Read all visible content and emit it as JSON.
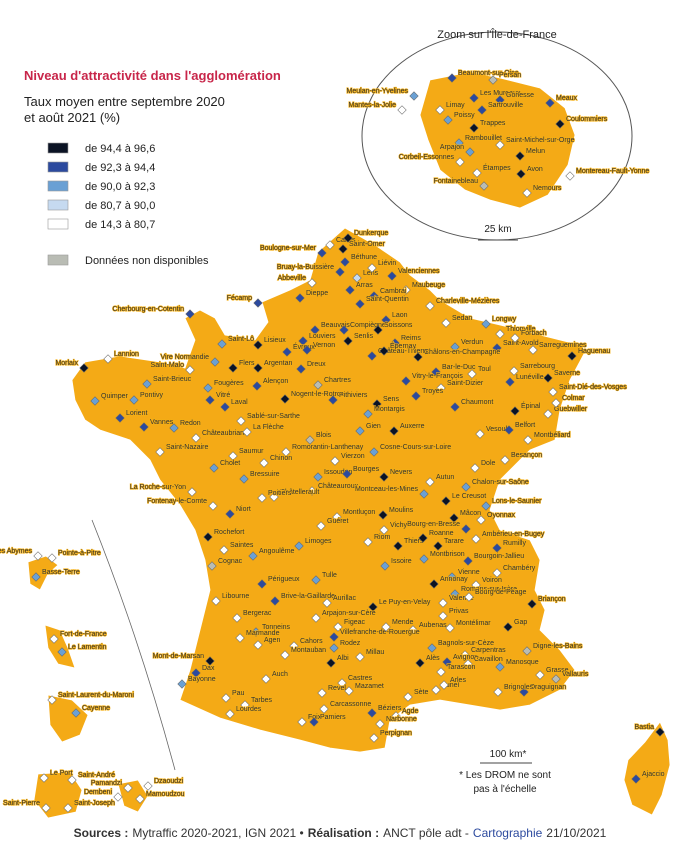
{
  "legend": {
    "title": "Niveau d'attractivité dans l'agglomération",
    "subtitle": [
      "Taux moyen entre septembre 2020",
      "et août 2021 (%)"
    ],
    "classes": [
      {
        "label": "de 94,4 à 96,6",
        "color": "#0b1324"
      },
      {
        "label": "de 92,3 à 94,4",
        "color": "#2c4a9e"
      },
      {
        "label": "de 90,0 à 92,3",
        "color": "#6aa0d4"
      },
      {
        "label": "de 80,7 à 90,0",
        "color": "#c6daf0"
      },
      {
        "label": "de 14,3 à 80,7",
        "color": "#ffffff"
      },
      {
        "label": "Données non disponibles",
        "color": "#b9bcb4"
      }
    ]
  },
  "inset": {
    "title": "Zoom sur l'Île-de-France",
    "scale": "25 km",
    "cities": [
      [
        "Beaumont-sur-Oise",
        1
      ],
      [
        "Persan",
        5
      ],
      [
        "Meulan-en-Yvelines",
        2
      ],
      [
        "Mantes-la-Jolie",
        4
      ],
      [
        "Les Mureaux",
        1
      ],
      [
        "Gonesse",
        1
      ],
      [
        "Meaux",
        1
      ],
      [
        "Limay",
        4
      ],
      [
        "Sartrouville",
        1
      ],
      [
        "Poissy",
        2
      ],
      [
        "Coulommiers",
        0
      ],
      [
        "Trappes",
        0
      ],
      [
        "Rambouillet",
        2
      ],
      [
        "Saint-Michel-sur-Orge",
        4
      ],
      [
        "Arpajon",
        2
      ],
      [
        "Corbeil-Essonnes",
        4
      ],
      [
        "Melun",
        0
      ],
      [
        "Étampes",
        4
      ],
      [
        "Avon",
        0
      ],
      [
        "Montereau-Fault-Yonne",
        4
      ],
      [
        "Fontainebleau",
        5
      ],
      [
        "Nemours",
        4
      ]
    ]
  },
  "cities": [
    [
      "Calais",
      4
    ],
    [
      "Dunkerque",
      0
    ],
    [
      "Boulogne-sur-Mer",
      1
    ],
    [
      "Saint-Omer",
      0
    ],
    [
      "Béthune",
      1
    ],
    [
      "Bruay-la-Buissière",
      1
    ],
    [
      "Lens",
      3
    ],
    [
      "Liévin",
      4
    ],
    [
      "Valenciennes",
      1
    ],
    [
      "Arras",
      1
    ],
    [
      "Abbeville",
      4
    ],
    [
      "Dieppe",
      1
    ],
    [
      "Maubeuge",
      4
    ],
    [
      "Cambrai",
      1
    ],
    [
      "Saint-Quentin",
      1
    ],
    [
      "Fécamp",
      1
    ],
    [
      "Cherbourg-en-Cotentin",
      1
    ],
    [
      "Charleville-Mézières",
      4
    ],
    [
      "Sedan",
      4
    ],
    [
      "Laon",
      1
    ],
    [
      "Beauvais",
      1
    ],
    [
      "Compiègne",
      1
    ],
    [
      "Soissons",
      0
    ],
    [
      "Longwy",
      2
    ],
    [
      "Thionville",
      4
    ],
    [
      "Saint-Lô",
      2
    ],
    [
      "Lisieux",
      0
    ],
    [
      "Louviers",
      1
    ],
    [
      "Senlis",
      0
    ],
    [
      "Reims",
      1
    ],
    [
      "Verdun",
      2
    ],
    [
      "Saint-Avold",
      1
    ],
    [
      "Forbach",
      4
    ],
    [
      "Sarreguemines",
      4
    ],
    [
      "Haguenau",
      0
    ],
    [
      "Évreux",
      1
    ],
    [
      "Vernon",
      1
    ],
    [
      "Château-Thierry",
      1
    ],
    [
      "Épernay",
      0
    ],
    [
      "Châlons-en-Champagne",
      0
    ],
    [
      "Lannion",
      4
    ],
    [
      "Morlaix",
      0
    ],
    [
      "Vire Normandie",
      2
    ],
    [
      "Flers",
      0
    ],
    [
      "Argentan",
      0
    ],
    [
      "Dreux",
      1
    ],
    [
      "Saint-Malo",
      4
    ],
    [
      "Bar-le-Duc",
      1
    ],
    [
      "Toul",
      4
    ],
    [
      "Sarrebourg",
      4
    ],
    [
      "Saverne",
      0
    ],
    [
      "Saint-Brieuc",
      2
    ],
    [
      "Fougères",
      2
    ],
    [
      "Alençon",
      1
    ],
    [
      "Chartres",
      5
    ],
    [
      "Vitry-le-François",
      1
    ],
    [
      "Lunéville",
      1
    ],
    [
      "Quimper",
      2
    ],
    [
      "Pontivy",
      2
    ],
    [
      "Vitré",
      1
    ],
    [
      "Laval",
      1
    ],
    [
      "Nogent-le-Rotrou",
      0
    ],
    [
      "Pithiviers",
      1
    ],
    [
      "Sens",
      0
    ],
    [
      "Saint-Dizier",
      4
    ],
    [
      "Saint-Dié-des-Vosges",
      4
    ],
    [
      "Troyes",
      1
    ],
    [
      "Chaumont",
      1
    ],
    [
      "Épinal",
      0
    ],
    [
      "Guebwiller",
      4
    ],
    [
      "Colmar",
      4
    ],
    [
      "Lorient",
      1
    ],
    [
      "Vannes",
      1
    ],
    [
      "Redon",
      2
    ],
    [
      "Sablé-sur-Sarthe",
      4
    ],
    [
      "Montargis",
      2
    ],
    [
      "Auxerre",
      0
    ],
    [
      "Gien",
      2
    ],
    [
      "Vesoul",
      4
    ],
    [
      "Belfort",
      1
    ],
    [
      "Montbéliard",
      4
    ],
    [
      "Châteaubriant",
      4
    ],
    [
      "La Flèche",
      4
    ],
    [
      "Blois",
      5
    ],
    [
      "Saint-Nazaire",
      4
    ],
    [
      "Saumur",
      4
    ],
    [
      "Romorantin-Lanthenay",
      4
    ],
    [
      "Cosne-Cours-sur-Loire",
      2
    ],
    [
      "Chinon",
      4
    ],
    [
      "Cholet",
      2
    ],
    [
      "Vierzon",
      4
    ],
    [
      "Besançon",
      4
    ],
    [
      "Dole",
      4
    ],
    [
      "Bressuire",
      2
    ],
    [
      "Issoudun",
      2
    ],
    [
      "Bourges",
      1
    ],
    [
      "Nevers",
      0
    ],
    [
      "Autun",
      4
    ],
    [
      "Châteauroux",
      4
    ],
    [
      "Châtellerault",
      4
    ],
    [
      "La Roche-sur-Yon",
      4
    ],
    [
      "Fontenay-le-Comte",
      4
    ],
    [
      "Poitiers",
      4
    ],
    [
      "Montceau-les-Mines",
      2
    ],
    [
      "Le Creusot",
      0
    ],
    [
      "Chalon-sur-Saône",
      2
    ],
    [
      "Lons-le-Saunier",
      2
    ],
    [
      "Niort",
      1
    ],
    [
      "Montluçon",
      4
    ],
    [
      "Moulins",
      0
    ],
    [
      "Oyonnax",
      4
    ],
    [
      "Guéret",
      4
    ],
    [
      "Mâcon",
      0
    ],
    [
      "Bourg-en-Bresse",
      1
    ],
    [
      "Vichy",
      4
    ],
    [
      "Riom",
      4
    ],
    [
      "Thiers",
      0
    ],
    [
      "Roanne",
      0
    ],
    [
      "Tarare",
      0
    ],
    [
      "Rochefort",
      0
    ],
    [
      "Ambérieu-en-Bugey",
      4
    ],
    [
      "Saintes",
      4
    ],
    [
      "Angoulême",
      2
    ],
    [
      "Limoges",
      2
    ],
    [
      "Rumilly",
      1
    ],
    [
      "Montbrison",
      2
    ],
    [
      "Bourgoin-Jallieu",
      1
    ],
    [
      "Issoire",
      2
    ],
    [
      "Cognac",
      5
    ],
    [
      "Vienne",
      2
    ],
    [
      "Chambéry",
      4
    ],
    [
      "Annonay",
      0
    ],
    [
      "Tulle",
      2
    ],
    [
      "Périgueux",
      1
    ],
    [
      "Voiron",
      4
    ],
    [
      "Romans-sur-Isère",
      2
    ],
    [
      "Brive-la-Gaillarde",
      1
    ],
    [
      "Aurillac",
      4
    ],
    [
      "Le Puy-en-Velay",
      0
    ],
    [
      "Valence",
      4
    ],
    [
      "Bourg-de-Péage",
      4
    ],
    [
      "Libourne",
      4
    ],
    [
      "Briançon",
      0
    ],
    [
      "Bergerac",
      4
    ],
    [
      "Arpajon-sur-Cère",
      4
    ],
    [
      "Privas",
      4
    ],
    [
      "Gap",
      0
    ],
    [
      "Aubenas",
      4
    ],
    [
      "Montélimar",
      4
    ],
    [
      "Tonneins",
      2
    ],
    [
      "Figeac",
      4
    ],
    [
      "Villefranche-de-Rouergue",
      1
    ],
    [
      "Mende",
      4
    ],
    [
      "Marmande",
      4
    ],
    [
      "Agen",
      4
    ],
    [
      "Cahors",
      4
    ],
    [
      "Bagnols-sur-Cèze",
      2
    ],
    [
      "Carpentras",
      4
    ],
    [
      "Digne-les-Bains",
      5
    ],
    [
      "Montauban",
      4
    ],
    [
      "Rodez",
      2
    ],
    [
      "Millau",
      4
    ],
    [
      "Avignon",
      1
    ],
    [
      "Cavaillon",
      4
    ],
    [
      "Manosque",
      2
    ],
    [
      "Mont-de-Marsan",
      0
    ],
    [
      "Dax",
      1
    ],
    [
      "Albi",
      0
    ],
    [
      "Alès",
      0
    ],
    [
      "Tarascon",
      4
    ],
    [
      "Grasse",
      4
    ],
    [
      "Vallauris",
      5
    ],
    [
      "Bayonne",
      2
    ],
    [
      "Auch",
      4
    ],
    [
      "Castres",
      4
    ],
    [
      "Lunel",
      4
    ],
    [
      "Arles",
      4
    ],
    [
      "Draguignan",
      1
    ],
    [
      "Brignoles",
      4
    ],
    [
      "Pau",
      4
    ],
    [
      "Revel",
      4
    ],
    [
      "Mazamet",
      4
    ],
    [
      "Sète",
      4
    ],
    [
      "Tarbes",
      4
    ],
    [
      "Lourdes",
      4
    ],
    [
      "Carcassonne",
      4
    ],
    [
      "Béziers",
      1
    ],
    [
      "Agde",
      4
    ],
    [
      "Foix",
      4
    ],
    [
      "Pamiers",
      1
    ],
    [
      "Narbonne",
      4
    ],
    [
      "Perpignan",
      4
    ],
    [
      "Bastia",
      0
    ],
    [
      "Ajaccio",
      1
    ],
    [
      "Les Abymes",
      4
    ],
    [
      "Pointe-à-Pitre",
      4
    ],
    [
      "Basse-Terre",
      2
    ],
    [
      "Fort-de-France",
      4
    ],
    [
      "Le Lamentin",
      2
    ],
    [
      "Saint-Laurent-du-Maroni",
      4
    ],
    [
      "Cayenne",
      2
    ],
    [
      "Le Port",
      4
    ],
    [
      "Saint-André",
      4
    ],
    [
      "Saint-Pierre",
      4
    ],
    [
      "Saint-Joseph",
      4
    ],
    [
      "Pamandzi",
      4
    ],
    [
      "Dzaoudzi",
      4
    ],
    [
      "Dembeni",
      4
    ],
    [
      "Mamoudzou",
      4
    ]
  ],
  "scale": "100 km*",
  "note": [
    "* Les DROM ne sont",
    "pas à l'échelle"
  ],
  "sources": [
    {
      "text": "Sources :",
      "bold": true
    },
    {
      "text": "Mytraffic 2020-2021, IGN 2021 •"
    },
    {
      "text": "Réalisation :",
      "bold": true
    },
    {
      "text": "ANCT pôle adt -"
    },
    {
      "text": "Cartographie",
      "color": "#2c4a9e"
    },
    {
      "text": "21/10/2021"
    }
  ]
}
